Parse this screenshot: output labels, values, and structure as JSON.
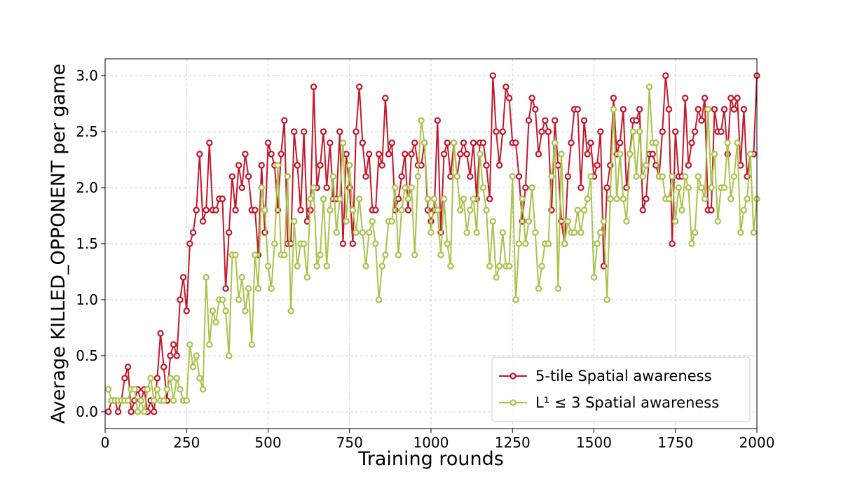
{
  "chart_data": {
    "type": "line",
    "xlabel": "Training rounds",
    "ylabel": "Average KILLED_OPPONENT per game",
    "xlim": [
      0,
      2000
    ],
    "ylim": [
      -0.15,
      3.15
    ],
    "xticks": [
      0,
      250,
      500,
      750,
      1000,
      1250,
      1500,
      1750,
      2000
    ],
    "yticks": [
      {
        "value": 0,
        "label": "0.0"
      },
      0.5,
      {
        "value": 1,
        "label": "1.0"
      },
      1.5,
      {
        "value": 2,
        "label": "2.0"
      },
      2.5,
      {
        "value": 3,
        "label": "3.0"
      }
    ],
    "grid": true,
    "legend": "lower right",
    "x": [
      10,
      20,
      30,
      40,
      50,
      60,
      70,
      80,
      90,
      100,
      110,
      120,
      130,
      140,
      150,
      160,
      170,
      180,
      190,
      200,
      210,
      220,
      230,
      240,
      250,
      260,
      270,
      280,
      290,
      300,
      310,
      320,
      330,
      340,
      350,
      360,
      370,
      380,
      390,
      400,
      410,
      420,
      430,
      440,
      450,
      460,
      470,
      480,
      490,
      500,
      510,
      520,
      530,
      540,
      550,
      560,
      570,
      580,
      590,
      600,
      610,
      620,
      630,
      640,
      650,
      660,
      670,
      680,
      690,
      700,
      710,
      720,
      730,
      740,
      750,
      760,
      770,
      780,
      790,
      800,
      810,
      820,
      830,
      840,
      850,
      860,
      870,
      880,
      890,
      900,
      910,
      920,
      930,
      940,
      950,
      960,
      970,
      980,
      990,
      1000,
      1010,
      1020,
      1030,
      1040,
      1050,
      1060,
      1070,
      1080,
      1090,
      1100,
      1110,
      1120,
      1130,
      1140,
      1150,
      1160,
      1170,
      1180,
      1190,
      1200,
      1210,
      1220,
      1230,
      1240,
      1250,
      1260,
      1270,
      1280,
      1290,
      1300,
      1310,
      1320,
      1330,
      1340,
      1350,
      1360,
      1370,
      1380,
      1390,
      1400,
      1410,
      1420,
      1430,
      1440,
      1450,
      1460,
      1470,
      1480,
      1490,
      1500,
      1510,
      1520,
      1530,
      1540,
      1550,
      1560,
      1570,
      1580,
      1590,
      1600,
      1610,
      1620,
      1630,
      1640,
      1650,
      1660,
      1670,
      1680,
      1690,
      1700,
      1710,
      1720,
      1730,
      1740,
      1750,
      1760,
      1770,
      1780,
      1790,
      1800,
      1810,
      1820,
      1830,
      1840,
      1850,
      1860,
      1870,
      1880,
      1890,
      1900,
      1910,
      1920,
      1930,
      1940,
      1950,
      1960,
      1970,
      1980,
      1990,
      2000
    ],
    "series": [
      {
        "name": "5-tile Spatial awareness",
        "color": "#c3172b",
        "values": [
          0,
          0.1,
          0.1,
          0,
          0.1,
          0.3,
          0.4,
          0,
          0.1,
          0.2,
          0.1,
          0.2,
          0,
          0.1,
          0,
          0.3,
          0.7,
          0.4,
          0.1,
          0.5,
          0.6,
          0.5,
          1.0,
          1.2,
          0.9,
          1.5,
          1.6,
          1.8,
          2.3,
          1.7,
          1.8,
          2.4,
          1.8,
          1.8,
          1.9,
          1.9,
          1.1,
          1.6,
          2.1,
          1.8,
          2.2,
          2.0,
          2.3,
          2.1,
          1.8,
          1.8,
          1.4,
          2.2,
          1.6,
          2.4,
          2.3,
          2.2,
          1.8,
          2.3,
          2.6,
          1.5,
          1.5,
          2.5,
          2.2,
          1.8,
          2.5,
          1.7,
          1.8,
          2.9,
          2.0,
          2.2,
          2.5,
          2.0,
          2.4,
          1.9,
          1.9,
          2.5,
          1.5,
          2.3,
          2.0,
          1.5,
          2.5,
          2.9,
          2.4,
          2.1,
          2.3,
          1.8,
          1.8,
          2.3,
          2.2,
          2.8,
          2.3,
          2.4,
          1.8,
          1.9,
          2.1,
          2.3,
          1.8,
          2.3,
          2.4,
          2.2,
          2.2,
          2.4,
          1.8,
          1.7,
          1.8,
          2.6,
          1.6,
          2.3,
          2.4,
          2.1,
          2.4,
          2.1,
          2.3,
          2.4,
          2.3,
          2.1,
          2.4,
          1.9,
          2.4,
          2.4,
          2.2,
          1.9,
          3.0,
          2.5,
          2.2,
          2.5,
          2.9,
          2.8,
          2.4,
          2.4,
          2.1,
          1.7,
          2.0,
          2.6,
          2.8,
          2.7,
          2.3,
          2.5,
          2.6,
          2.5,
          1.8,
          2.6,
          2.2,
          1.7,
          1.5,
          2.1,
          2.4,
          2.7,
          2.7,
          2.0,
          2.6,
          2.3,
          2.4,
          2.1,
          2.2,
          2.5,
          1.3,
          2.0,
          2.2,
          2.8,
          2.3,
          2.4,
          2.7,
          2.0,
          2.3,
          2.6,
          2.6,
          2.7,
          1.8,
          1.9,
          2.3,
          2.3,
          2.2,
          2.1,
          2.5,
          3.0,
          2.7,
          1.5,
          2.5,
          2.1,
          2.1,
          2.8,
          2.2,
          2.4,
          2.5,
          2.7,
          2.6,
          2.8,
          1.8,
          1.8,
          2.7,
          2.5,
          2.5,
          2.7,
          2.3,
          2.8,
          2.7,
          2.8,
          2.2,
          2.7,
          2.1,
          2.3,
          2.3,
          3.0
        ]
      },
      {
        "name": "L¹ ≤ 3 Spatial awareness",
        "color": "#a9c34b",
        "values": [
          0.2,
          0.1,
          0.1,
          0.1,
          0.1,
          0.1,
          0.1,
          0.2,
          0.2,
          0,
          0.1,
          0,
          0.2,
          0.3,
          0.1,
          0.2,
          0.1,
          0.1,
          0.2,
          0.3,
          0.1,
          0.3,
          0.2,
          0.1,
          0.1,
          0.6,
          0.4,
          0.5,
          0.3,
          0.2,
          1.2,
          0.6,
          0.9,
          0.8,
          1.0,
          1.0,
          0.9,
          0.5,
          1.4,
          1.4,
          1.0,
          1.2,
          0.9,
          1.1,
          0.6,
          1.4,
          1.1,
          2.0,
          1.8,
          1.3,
          1.1,
          1.5,
          2.2,
          1.4,
          1.4,
          2.1,
          0.9,
          1.7,
          1.3,
          1.5,
          1.5,
          1.2,
          1.9,
          2.0,
          1.3,
          1.4,
          1.9,
          1.3,
          1.8,
          2.1,
          1.6,
          1.9,
          2.4,
          1.7,
          2.2,
          1.8,
          1.6,
          1.9,
          1.6,
          1.3,
          1.6,
          1.7,
          1.5,
          1.0,
          1.3,
          1.4,
          1.7,
          1.7,
          2.0,
          1.4,
          1.8,
          2.0,
          1.9,
          2.0,
          1.4,
          2.1,
          2.6,
          2.4,
          1.9,
          1.6,
          1.9,
          1.8,
          1.4,
          1.9,
          1.5,
          1.3,
          2.4,
          2.1,
          1.8,
          1.9,
          1.6,
          1.8,
          1.9,
          1.6,
          2.3,
          2.0,
          1.8,
          1.3,
          1.7,
          1.2,
          1.3,
          1.6,
          1.3,
          1.3,
          2.1,
          1.0,
          1.5,
          1.9,
          1.5,
          1.7,
          2.0,
          1.6,
          1.1,
          1.3,
          1.5,
          1.5,
          2.1,
          2.4,
          1.1,
          2.3,
          1.5,
          1.7,
          1.6,
          1.6,
          1.8,
          1.6,
          1.8,
          1.9,
          2.1,
          1.2,
          1.5,
          1.6,
          1.7,
          1.0,
          1.9,
          2.7,
          1.9,
          2.3,
          1.9,
          1.7,
          2.3,
          2.5,
          2.1,
          2.5,
          2.1,
          2.2,
          2.9,
          2.4,
          2.4,
          2.1,
          2.1,
          1.9,
          1.9,
          2.1,
          1.7,
          2.0,
          1.8,
          2.1,
          2.0,
          1.5,
          1.6,
          2.1,
          2.0,
          1.9,
          2.7,
          2.0,
          2.3,
          1.7,
          2.0,
          2.0,
          2.4,
          1.9,
          2.1,
          2.4,
          1.6,
          1.8,
          1.9,
          2.3,
          1.6,
          1.9
        ]
      }
    ]
  }
}
